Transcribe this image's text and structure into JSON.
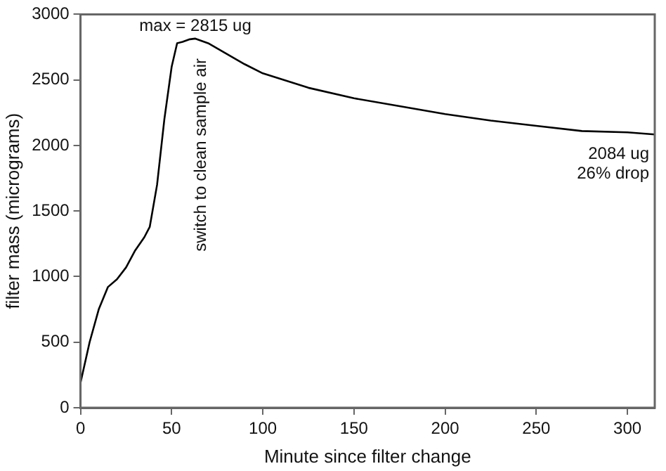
{
  "chart_data": {
    "type": "line",
    "xlabel": "Minute since filter change",
    "ylabel": "filter mass (micrograms)",
    "x": [
      0,
      5,
      10,
      15,
      20,
      25,
      30,
      35,
      38,
      42,
      46,
      50,
      53,
      56,
      60,
      63,
      70,
      80,
      90,
      100,
      125,
      150,
      175,
      200,
      225,
      250,
      275,
      300,
      315
    ],
    "series": [
      {
        "color": "#000000",
        "values": [
          190,
          500,
          750,
          920,
          980,
          1070,
          1200,
          1300,
          1380,
          1700,
          2200,
          2600,
          2780,
          2790,
          2810,
          2815,
          2780,
          2700,
          2620,
          2550,
          2440,
          2360,
          2300,
          2240,
          2190,
          2150,
          2110,
          2100,
          2084
        ]
      }
    ],
    "xlim": [
      0,
      315
    ],
    "xticks": [
      0,
      50,
      100,
      150,
      200,
      250,
      300
    ],
    "ylim": [
      0,
      3000
    ],
    "yticks": [
      0,
      500,
      1000,
      1500,
      2000,
      2500,
      3000
    ],
    "grid": false,
    "legend": false,
    "marker": "none",
    "line_style": "solid",
    "annotations": [
      {
        "text": "max = 2815 ug",
        "x": 63,
        "y": 2815
      },
      "switch to clean sample air",
      {
        "text": "2084 ug\n26% drop",
        "x": 315,
        "y": 2084
      }
    ]
  }
}
